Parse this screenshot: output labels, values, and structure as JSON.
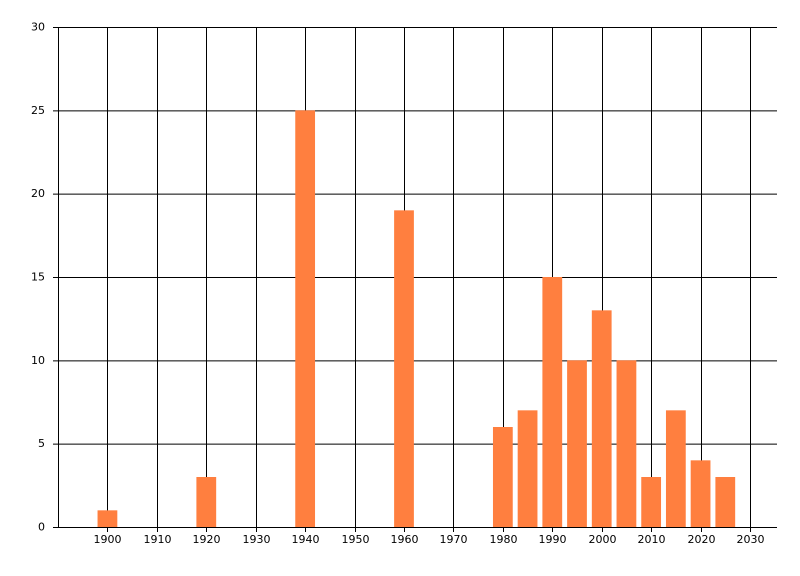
{
  "chart_data": {
    "type": "bar",
    "x": [
      1900,
      1920,
      1940,
      1960,
      1980,
      1985,
      1990,
      1995,
      2000,
      2005,
      2010,
      2015,
      2020,
      2025
    ],
    "values": [
      1,
      3,
      25,
      19,
      6,
      7,
      15,
      10,
      13,
      10,
      3,
      7,
      4,
      3
    ],
    "color": "#ff7f3f",
    "xlim": [
      1890,
      2030
    ],
    "xticks": [
      1900,
      1910,
      1920,
      1930,
      1940,
      1950,
      1960,
      1970,
      1980,
      1990,
      2000,
      2010,
      2020,
      2030
    ],
    "ylim": [
      0,
      30
    ],
    "yticks": [
      0,
      5,
      10,
      15,
      20,
      25,
      30
    ],
    "grid": true
  }
}
